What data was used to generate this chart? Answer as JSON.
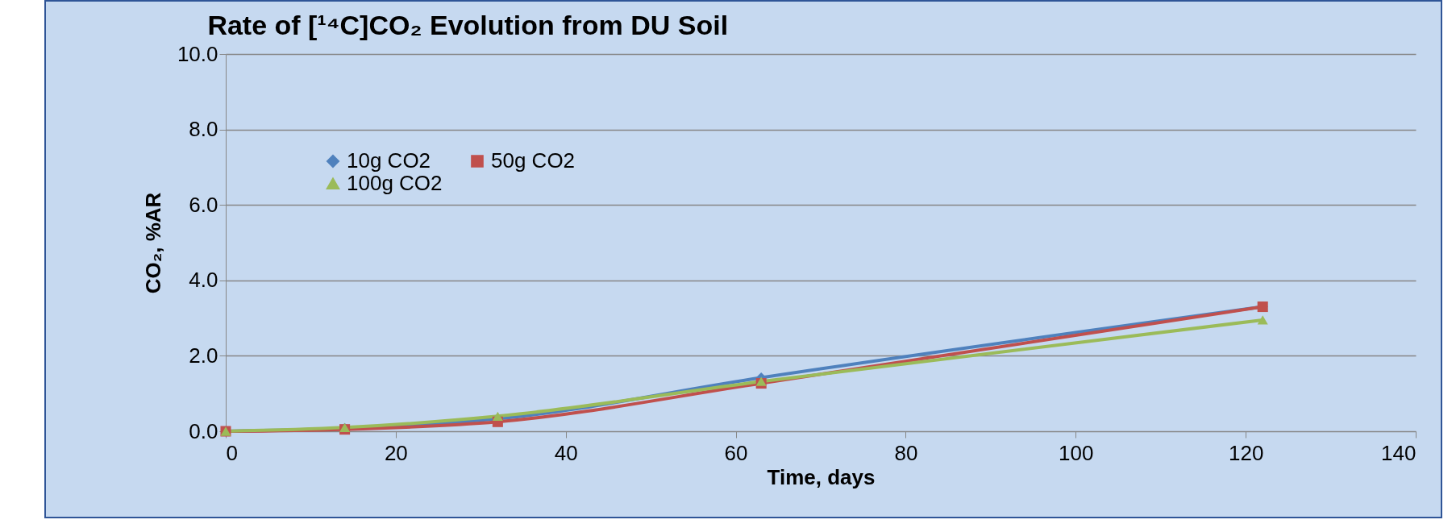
{
  "chart_data": {
    "type": "line",
    "title": "Rate of [¹⁴C]CO₂ Evolution from DU Soil",
    "xlabel": "Time, days",
    "ylabel": "CO₂, %AR",
    "x": [
      0,
      14,
      32,
      63,
      122
    ],
    "series": [
      {
        "name": "10g CO2",
        "color": "#4f81bd",
        "marker": "diamond",
        "values": [
          0,
          0.08,
          0.33,
          1.42,
          3.3
        ]
      },
      {
        "name": "50g CO2",
        "color": "#c0504d",
        "marker": "square",
        "values": [
          0,
          0.05,
          0.25,
          1.27,
          3.3
        ]
      },
      {
        "name": "100g CO2",
        "color": "#9bbb59",
        "marker": "triangle",
        "values": [
          0,
          0.1,
          0.4,
          1.32,
          2.95
        ]
      }
    ],
    "xlim": [
      0,
      140
    ],
    "xticks": [
      0,
      20,
      40,
      60,
      80,
      100,
      120,
      140
    ],
    "ylim": [
      0,
      10
    ],
    "yticks": [
      {
        "value": 0,
        "label": "0.0"
      },
      {
        "value": 2,
        "label": "2.0"
      },
      {
        "value": 4,
        "label": "4.0"
      },
      {
        "value": 6,
        "label": "6.0"
      },
      {
        "value": 8,
        "label": "8.0"
      },
      {
        "value": 10,
        "label": "10.0"
      }
    ],
    "grid": "y",
    "legend": "top left",
    "line_style": "solid"
  }
}
